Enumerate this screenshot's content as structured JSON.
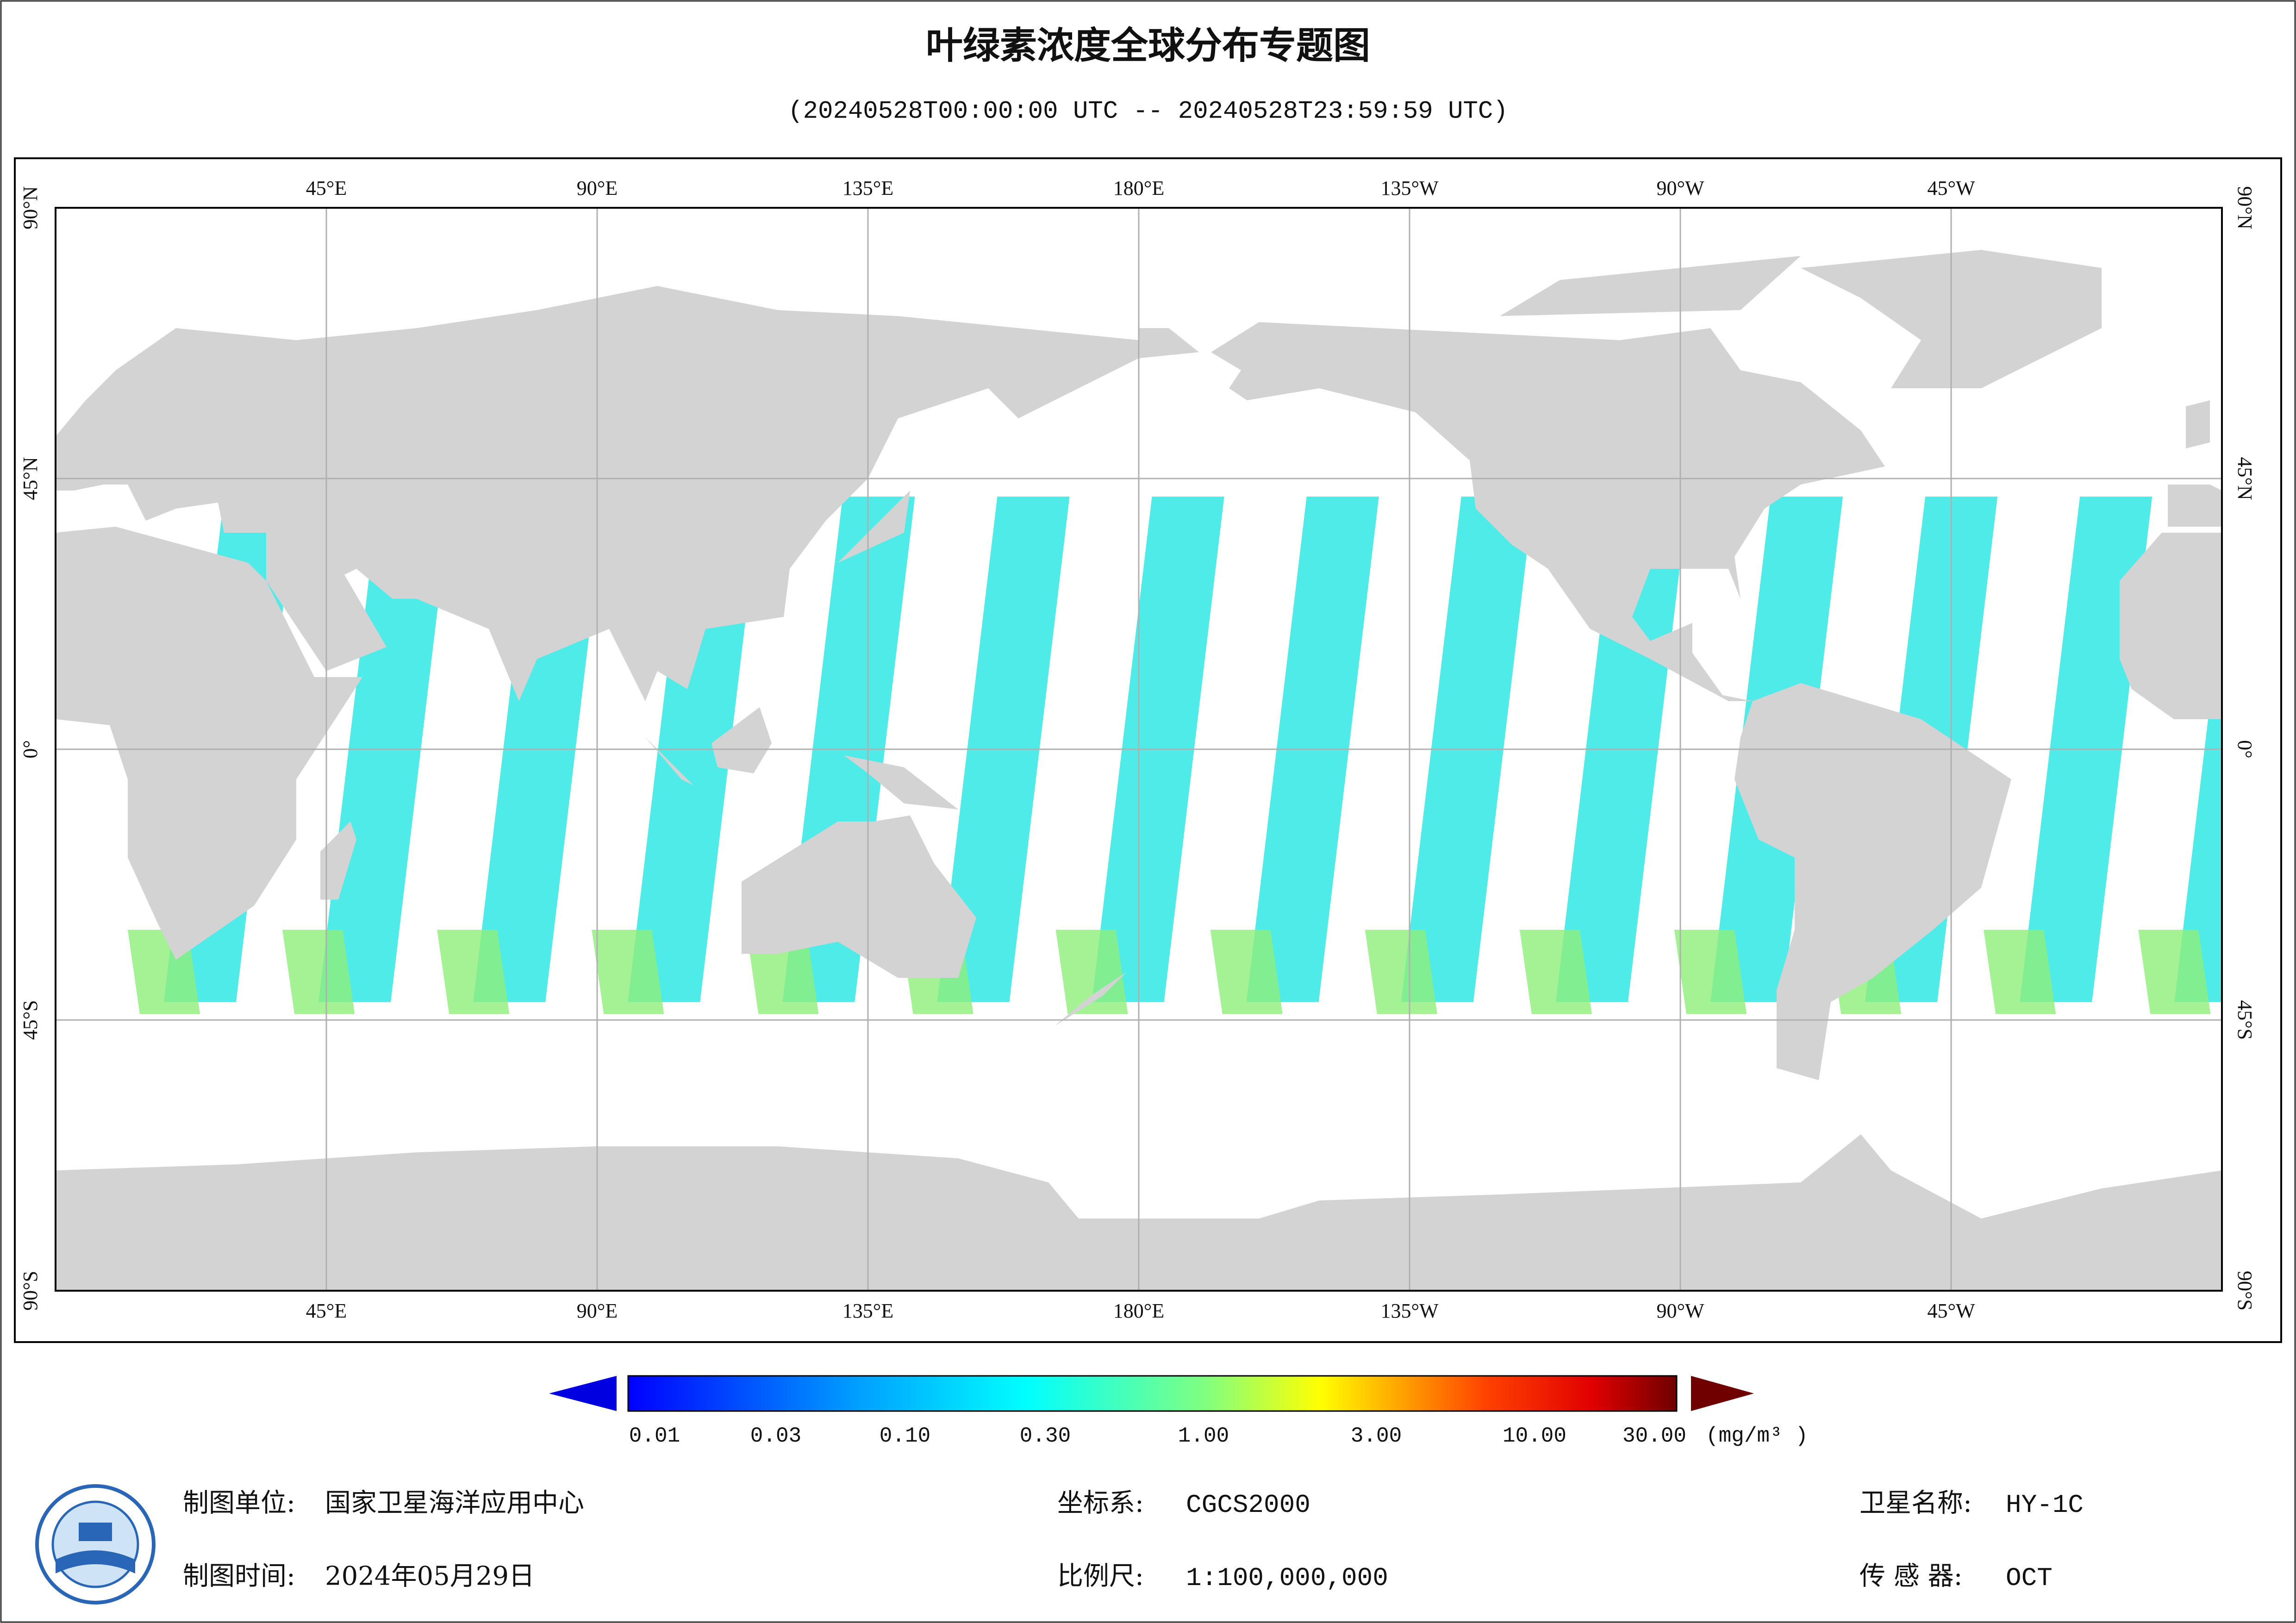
{
  "header": {
    "title": "叶绿素浓度全球分布专题图",
    "subtitle": "(20240528T00:00:00 UTC -- 20240528T23:59:59 UTC)"
  },
  "map": {
    "lon_labels": [
      "45°E",
      "90°E",
      "135°E",
      "180°E",
      "135°W",
      "90°W",
      "45°W"
    ],
    "lat_labels": [
      "90°N",
      "45°N",
      "0°",
      "45°S",
      "90°S"
    ]
  },
  "colorbar": {
    "ticks": [
      "0.01",
      "0.03",
      "0.10",
      "0.30",
      "1.00",
      "3.00",
      "10.00",
      "30.00"
    ],
    "unit": "(mg/m³ )"
  },
  "footer": {
    "unit_label": "制图单位:",
    "unit": "国家卫星海洋应用中心",
    "date_label": "制图时间:",
    "date": "2024年05月29日",
    "crs_label": "坐标系:",
    "crs": "CGCS2000",
    "scale_label": "比例尺:",
    "scale": "1:100,000,000",
    "satellite_label": "卫星名称:",
    "satellite": "HY-1C",
    "sensor_label": "传 感 器:",
    "sensor": "OCT"
  }
}
